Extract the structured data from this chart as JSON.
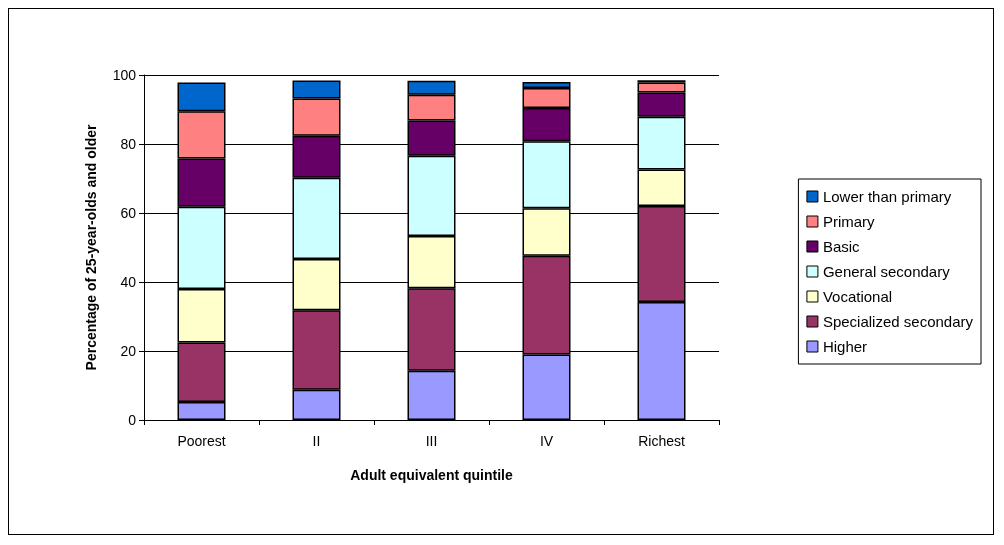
{
  "chart_data": {
    "type": "bar",
    "stacked": true,
    "xlabel": "Adult equivalent quintile",
    "ylabel": "Percentage of 25-year-olds and older",
    "categories": [
      "Poorest",
      "II",
      "III",
      "IV",
      "Richest"
    ],
    "ylim": [
      0,
      100
    ],
    "yticks": [
      0,
      20,
      40,
      60,
      80,
      100
    ],
    "grid": "y",
    "legend": "right",
    "series": [
      {
        "name": "Higher",
        "color": "#9999ff",
        "values": [
          5.2,
          8.8,
          14.3,
          19.0,
          34.2
        ]
      },
      {
        "name": "Specialized secondary",
        "color": "#993366",
        "values": [
          17.3,
          23.0,
          23.9,
          28.6,
          27.8
        ]
      },
      {
        "name": "Vocational",
        "color": "#ffffcc",
        "values": [
          15.5,
          14.9,
          15.1,
          13.8,
          10.6
        ]
      },
      {
        "name": "General secondary",
        "color": "#ccffff",
        "values": [
          23.8,
          23.5,
          23.3,
          19.4,
          15.3
        ]
      },
      {
        "name": "Basic",
        "color": "#660066",
        "values": [
          14.0,
          12.2,
          10.2,
          9.6,
          7.0
        ]
      },
      {
        "name": "Primary",
        "color": "#ff8080",
        "values": [
          13.7,
          10.8,
          7.5,
          5.8,
          2.9
        ]
      },
      {
        "name": "Lower than primary",
        "color": "#0066cc",
        "values": [
          8.3,
          5.2,
          4.0,
          1.8,
          0.7
        ]
      }
    ]
  }
}
